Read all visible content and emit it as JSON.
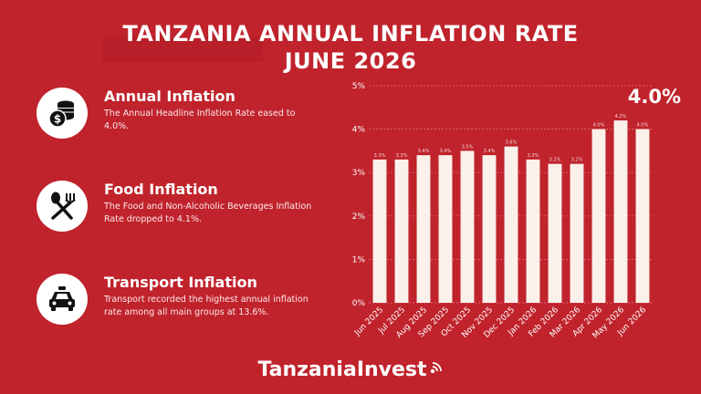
{
  "header": {
    "title_line1": "TANZANIA ANNUAL INFLATION RATE",
    "title_line2": "JUNE 2026"
  },
  "info": [
    {
      "icon": "coins-icon",
      "title": "Annual Inflation",
      "text": "The Annual Headline Inflation Rate eased to 4.0%."
    },
    {
      "icon": "utensils-icon",
      "title": "Food Inflation",
      "text": "The Food and Non-Alcoholic Beverages Inflation Rate dropped to 4.1%."
    },
    {
      "icon": "car-icon",
      "title": "Transport Inflation",
      "text": "Transport recorded the highest annual inflation rate among all main groups at 13.6%."
    }
  ],
  "highlight_value": "4.0%",
  "brand": {
    "name": "TanzaniaInvest"
  },
  "colors": {
    "background": "#c0232c",
    "bar": "#fbf1ea",
    "text": "#ffffff"
  },
  "chart_data": {
    "type": "bar",
    "categories": [
      "Jun 2025",
      "Jul 2025",
      "Aug 2025",
      "Sep 2025",
      "Oct 2025",
      "Nov 2025",
      "Dec 2025",
      "Jan 2026",
      "Feb 2026",
      "Mar 2026",
      "Apr 2026",
      "May 2026",
      "Jun 2026"
    ],
    "values": [
      3.3,
      3.3,
      3.4,
      3.4,
      3.5,
      3.4,
      3.6,
      3.3,
      3.2,
      3.2,
      4.0,
      4.2,
      4.0
    ],
    "data_labels": [
      "3.3%",
      "3.3%",
      "3.4%",
      "3.4%",
      "3.5%",
      "3.4%",
      "3.6%",
      "3.3%",
      "3.2%",
      "3.2%",
      "4.0%",
      "4.2%",
      "4.0%"
    ],
    "y_ticks": [
      0,
      1,
      2,
      3,
      4,
      5
    ],
    "y_tick_labels": [
      "0%",
      "1%",
      "2%",
      "3%",
      "4%",
      "5%"
    ],
    "ylim": [
      0,
      5
    ],
    "title": "",
    "xlabel": "",
    "ylabel": "",
    "grid": true
  }
}
